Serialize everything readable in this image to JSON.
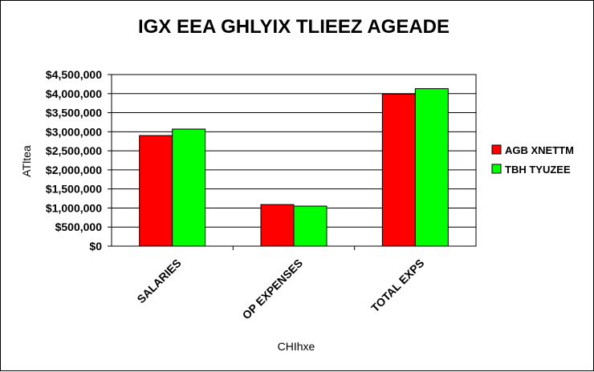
{
  "chart_data": {
    "type": "bar",
    "title": "IGX EEA GHLYIX TLIEEZ AGEADE",
    "xlabel": "CHIhxe",
    "ylabel": "ATltea",
    "categories": [
      "SALARIES",
      "OP EXPENSES",
      "TOTAL EXPS"
    ],
    "series": [
      {
        "name": "AGB XNETTM",
        "color": "#ff0000",
        "values": [
          2900000,
          1090000,
          3990000
        ]
      },
      {
        "name": "TBH TYUZEE",
        "color": "#00ff00",
        "values": [
          3070000,
          1050000,
          4130000
        ]
      }
    ],
    "ylim": [
      0,
      4500000
    ],
    "yticks": [
      0,
      500000,
      1000000,
      1500000,
      2000000,
      2500000,
      3000000,
      3500000,
      4000000,
      4500000
    ],
    "ytick_labels": [
      "$0",
      "$500,000",
      "$1,000,000",
      "$1,500,000",
      "$2,000,000",
      "$2,500,000",
      "$3,000,000",
      "$3,500,000",
      "$4,000,000",
      "$4,500,000"
    ],
    "grid": true,
    "legend": "right"
  }
}
